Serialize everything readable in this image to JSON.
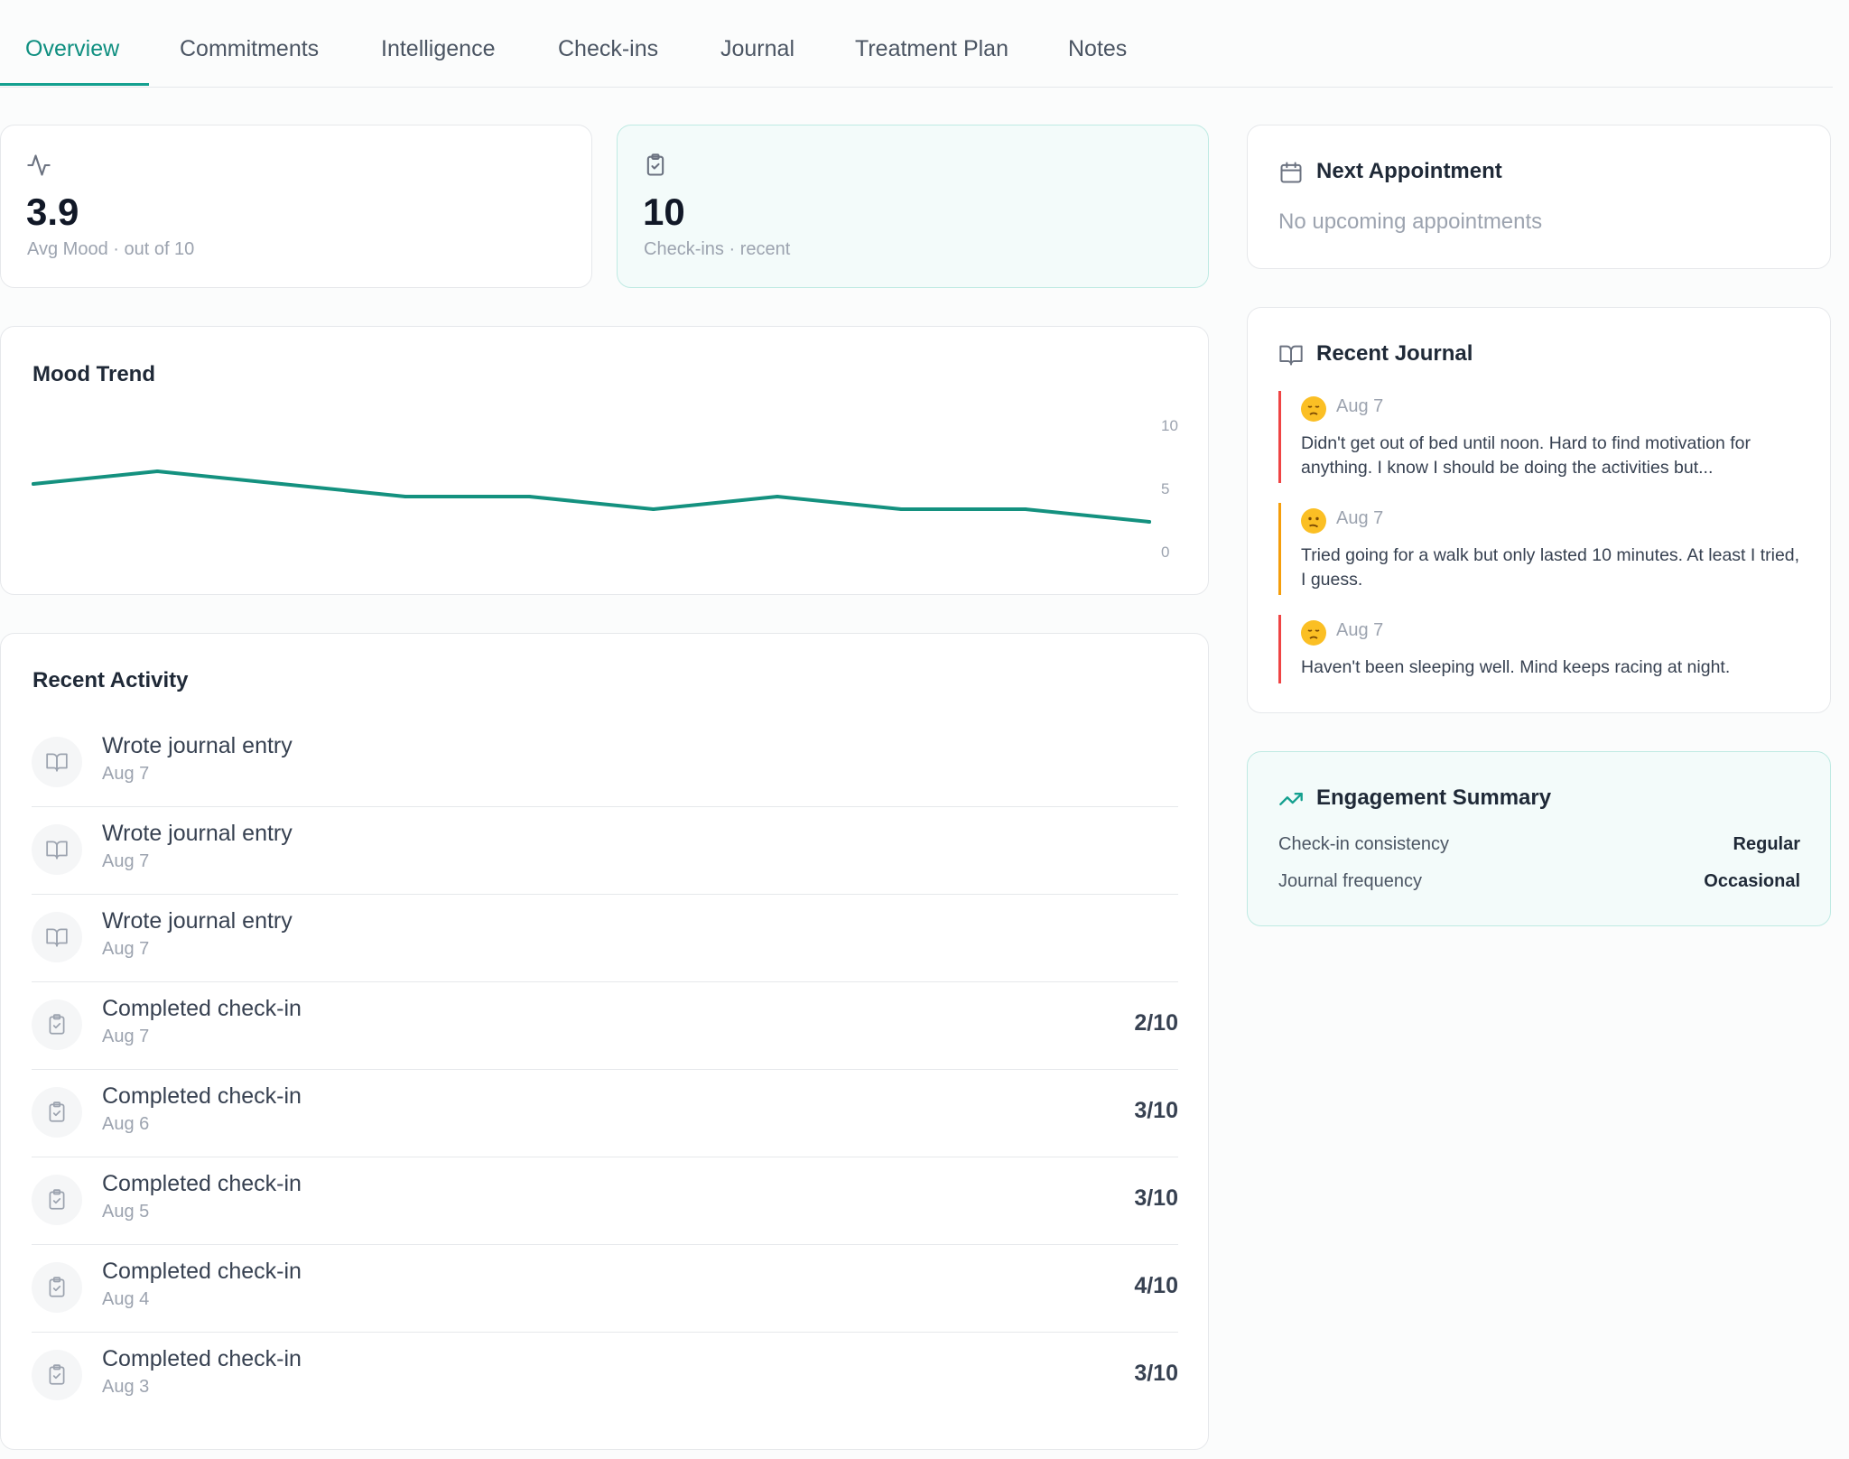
{
  "tabs": [
    {
      "label": "Overview"
    },
    {
      "label": "Commitments"
    },
    {
      "label": "Intelligence"
    },
    {
      "label": "Check-ins"
    },
    {
      "label": "Journal"
    },
    {
      "label": "Treatment Plan"
    },
    {
      "label": "Notes"
    }
  ],
  "active_tab": "Overview",
  "stats": {
    "mood": {
      "value": "3.9",
      "label": "Avg Mood · out of 10",
      "icon": "activity-icon"
    },
    "checkins": {
      "value": "10",
      "label": "Check-ins · recent",
      "icon": "clipboard-check-icon"
    }
  },
  "mood_trend": {
    "title": "Mood Trend"
  },
  "chart_data": {
    "type": "line",
    "title": "Mood Trend",
    "xlabel": "",
    "ylabel": "",
    "yticks": [
      "10",
      "5",
      "0"
    ],
    "ylim": [
      0,
      10
    ],
    "grid": false,
    "series": [
      {
        "values": [
          5,
          6,
          5,
          4,
          4,
          3,
          4,
          3,
          3,
          2
        ],
        "color": "#14917f"
      }
    ]
  },
  "activity": {
    "title": "Recent Activity",
    "items": [
      {
        "title": "Wrote journal entry",
        "date": "Aug 7",
        "score": "",
        "icon": "book-open-icon"
      },
      {
        "title": "Wrote journal entry",
        "date": "Aug 7",
        "score": "",
        "icon": "book-open-icon"
      },
      {
        "title": "Wrote journal entry",
        "date": "Aug 7",
        "score": "",
        "icon": "book-open-icon"
      },
      {
        "title": "Completed check-in",
        "date": "Aug 7",
        "score": "2/10",
        "icon": "clipboard-check-icon"
      },
      {
        "title": "Completed check-in",
        "date": "Aug 6",
        "score": "3/10",
        "icon": "clipboard-check-icon"
      },
      {
        "title": "Completed check-in",
        "date": "Aug 5",
        "score": "3/10",
        "icon": "clipboard-check-icon"
      },
      {
        "title": "Completed check-in",
        "date": "Aug 4",
        "score": "4/10",
        "icon": "clipboard-check-icon"
      },
      {
        "title": "Completed check-in",
        "date": "Aug 3",
        "score": "3/10",
        "icon": "clipboard-check-icon"
      }
    ]
  },
  "next_appointment": {
    "title": "Next Appointment",
    "empty_text": "No upcoming appointments"
  },
  "journal": {
    "title": "Recent Journal",
    "entries": [
      {
        "date": "Aug 7",
        "mood_icon": "sad-face-icon",
        "text": "Didn't get out of bed until noon. Hard to find motivation for anything. I know I should be doing the activities but..."
      },
      {
        "date": "Aug 7",
        "mood_icon": "confused-face-icon",
        "text": "Tried going for a walk but only lasted 10 minutes. At least I tried, I guess."
      },
      {
        "date": "Aug 7",
        "mood_icon": "sad-face-icon",
        "text": "Haven't been sleeping well. Mind keeps racing at night."
      }
    ]
  },
  "engagement": {
    "title": "Engagement Summary",
    "rows": [
      {
        "label": "Check-in consistency",
        "value": "Regular"
      },
      {
        "label": "Journal frequency",
        "value": "Occasional"
      }
    ]
  },
  "colors": {
    "accent": "#14a08f",
    "line": "#14917f",
    "negative": "#ef4444",
    "warning": "#f59e0b"
  }
}
